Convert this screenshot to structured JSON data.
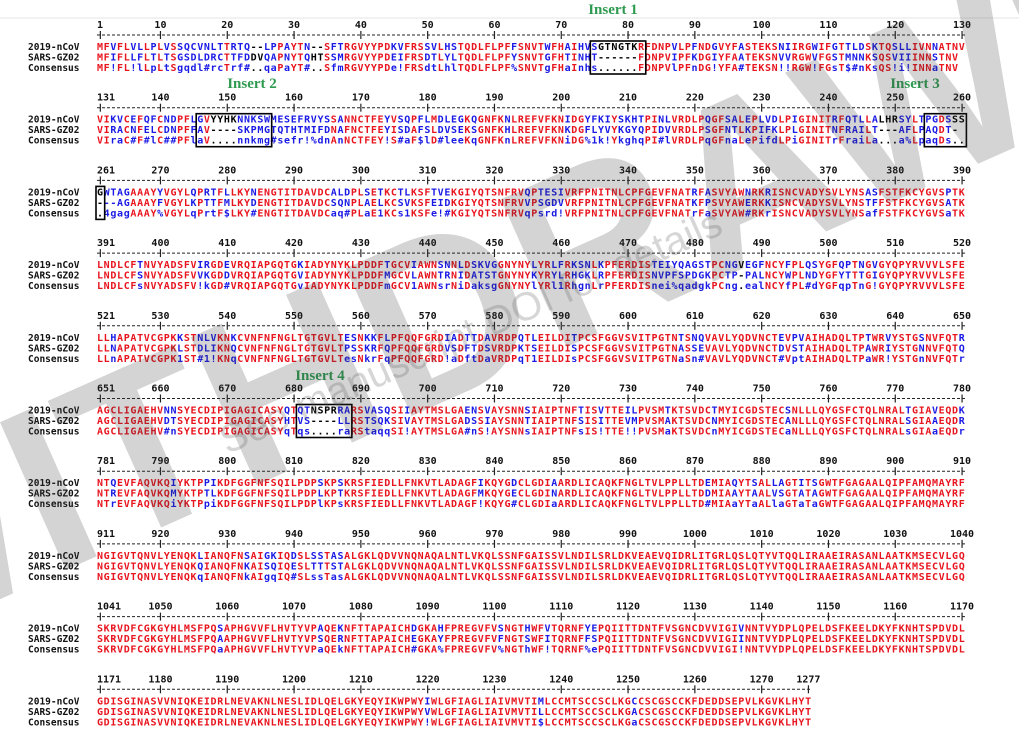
{
  "watermark": "WITHDRAWN",
  "watermark_note": "See manuscript DOI for details",
  "inserts": [
    "Insert 1",
    "Insert 2",
    "Insert 3",
    "Insert 4"
  ],
  "row_labels": [
    "2019-nCoV",
    "SARS-GZ02",
    "Consensus"
  ],
  "blocks": [
    {
      "ticks": [
        1,
        10,
        20,
        30,
        40,
        50,
        60,
        70,
        80,
        90,
        100,
        110,
        120,
        130
      ],
      "rows": [
        "MFVFLVLLPLVSSQCVNLTTRTQ--LPPAYTN--SFTRGVYYPDKVFRSSVLHSTQDLFLPFFSNVTWFHAIHVSGTNGTKRFDNPVLPFNDGVYFASTEKSNIIRGWIFGTTLDSKTQSLLIVNNATNV",
        "MFIFLLFLTLTSGSDLDRCTTFDDVQAPNYTQHTSSMRGVYYPDEIFRSDTLYLTQDLFLPFYSNVTGFHTINHT------FDNPVIPFKDGIYFAATEKSNVVRGWVFGSTMNNKSQSVIIINNSTNV",
        "MF!FL!lLpLtSgqdl#rcTrf#..qaPaYT#..SfmRGVYYPDe!FRSdtLhlTQDLFLPF%SNVTgFHaInhs......FDNPVlPFnDG!YFA#TEKSN!!RGW!FGsT$#nKsQS!i!INNaTNV"
      ]
    },
    {
      "ticks": [
        131,
        140,
        150,
        160,
        170,
        180,
        190,
        200,
        210,
        220,
        230,
        240,
        250,
        260
      ],
      "rows": [
        "VIKVCEFQFCNDPFLGVYYHKNNKSWMESEFRVYSSANNCTFEYVSQPFLMDLEGKQGNFKNLREFVFKNIDGYFKIYSKHTPINLVRDLPQGFSALEPLVDLPIGINITRFQTLLALHRSYLTPGDSSS",
        "VIRACNFELCDNPFFAV----SKPMGTQTHTMIFDNAFNCTFEYISDAFSLDVSEKSGNFKHLREFVFKNKDGFLYVYKGYQPIDVVRDLPSGFNTLKPIFKLPLGINITNFRAILT---AFLPAQDT-",
        "VIraC#F#lC##PFlaV....nnkmg#sefr!%dnAnNCTFEY!S#aF$lD#leeKqGNFKnLREFVFKNiDG%1k!YkghqPI#lVRDLPqGFnaLePifdLPiGINITrFraiLa...a%LpaqDs.."
      ]
    },
    {
      "ticks": [
        261,
        270,
        280,
        290,
        300,
        310,
        320,
        330,
        340,
        350,
        360,
        370,
        380,
        390
      ],
      "rows": [
        "GWTAGAAAYYVGYLQPRTFLLKYNENGTITDAVDCALDPLSETKCTLKSFTVEKGIYQTSNFRVQPTESIVRFPNITNLCPFGEVFNATRFASVYAWNRKRISNCVADYSVLYNSASFSTFKCYGVSPTK",
        "---AGAAAYFVGYLKPTTFMLKYDENGTITDAVDCSQNPLAELKCSVKSFEIDKGIYQTSNFRVVPSGDVVRFPNITNLCPFGEVFNATKFPSVYAWERKKISNCVADYSVLYNSTFFSTFKCYGVSATK",
        ".4gagAAAY%VGYLqPrtF$LKY#ENGTITDAVDCaq#PLaE1KCs1KSFe!#KGIYQTSNFRVqPsrd!VRFPNITNLCPFGEVFNATrFaSVYAW#RKrISNCVADYSVLYNSafFSTFKCYGVSaTK"
      ]
    },
    {
      "ticks": [
        391,
        400,
        410,
        420,
        430,
        440,
        450,
        460,
        470,
        480,
        490,
        500,
        510,
        520
      ],
      "rows": [
        "LNDLCFTNVYADSFVIRGDEVRQIAPGQTGKIADYNYKLPDDFTGCVIAWNSNNLDSKVGGNYNYLYRLFRKSNLKPFERDISTEIYQAGSTPCNGVEGFNCYFPLQSYGFQPTNGVGYQPYRVVVLSFE",
        "LNDLCFSNVYADSFVVKGDDVRQIAPGQTGVIADYNYKLPDDFMGCVLAWNTRNIDATSTGNYNYKYRYLRHGKLRPFERDISNVPFSPDGKPCTP-PALNCYWPLNDYGFYTTTGIGYQPYRVVVLSFE",
        "LNDLCFsNVYADSFV!kGD#VRQIAPGQTGvIADYNYKLPDDFmGCV1AWNsrNiDaksgGNYNYlYRl1RhgnLrPFERDISnei%qadgkPCng.ealNCYfPL#dYGFqpTnG!GYQPYRVVVLSFE"
      ]
    },
    {
      "ticks": [
        521,
        530,
        540,
        550,
        560,
        570,
        580,
        590,
        600,
        610,
        620,
        630,
        640,
        650
      ],
      "rows": [
        "LLHAPATVCGPKKSTNLVKNKCVNFNFNGLTGTGVLTESNKKFLPFQQFGRDIADTTDAVRDPQTLEILDITPCSFGGVSVITPGTNTSNQVAVLYQDVNCTEVPVAIHADQLTPTWRVYSTGSNVFQTR",
        "LLNAPATVCGPKLSTDLIKNQCVNFNFNGLTGTGVLTPSSKRFQPFQQFGRDVSDFTDSVRDPKTSEILDISPCSFGGVSVITPGTNASSEVAVLYQDVNCTDVSTAIHADQLTPAWRIYSTGNNVFQTQ",
        "LLnAPATVCGPK1ST#1!KNqCVNFNFNGLTGTGVLTesNkrFqPFQQFGRD!aDftDaVRDPqT1EILDIsPCSFGGVSVITPGTNaSn#VAVLYQDVNCT#VptAIHADQLTPaWR!YSTGnNVFQTr"
      ]
    },
    {
      "ticks": [
        651,
        660,
        670,
        680,
        690,
        700,
        710,
        720,
        730,
        740,
        750,
        760,
        770,
        780
      ],
      "rows": [
        "AGCLIGAEHVNNSYECDIPIGAGICASYQTQTNSPRRARSVASQSIIAYTMSLGAENSVAYSNNSIAIPTNFTISVTTEILPVSMTKTSVDCTMYICGDSTECSNLLLQYGSFCTQLNRALTGIAVEQDK",
        "AGCLIGAEHVDTSYECDIPIGAGICASYHTVS----LLRSTSQKSIVAYTMSLGADSSIAYSNNTIAIPTNFSISITTEVMPVSMAKTSVDCNMYICGDSTECANLLLQYGSFCTQLNRALSGIAAEQDR",
        "AGCLIGAEHV#nSYECDIPIGAGICASYqTqs....raRStaqqSI!AYTMSLGA#nS!AYSNNsIAIPTNFsIS!TTE!!PVSMaKTSVDCnMYICGDSTECaNLLLQYGSFCTQLNRALsGIAaEQDr"
      ]
    },
    {
      "ticks": [
        781,
        790,
        800,
        810,
        820,
        830,
        840,
        850,
        860,
        870,
        880,
        890,
        900,
        910
      ],
      "rows": [
        "NTQEVFAQVKQIYKTPPIKDFGGFNFSQILPDPSKPSKRSFIEDLLFNKVTLADAGFIKQYGDCLGDIAARDLICAQKFNGLTVLPPLLTDEMIAQYTSALLAGTITSGWTFGAGAALQIPFAMQMAYRF",
        "NTREVFAQVKQMYKTPTLKDFGGFNFSQILPDPLKPTKRSFIEDLLFNKVTLADAGFMKQYGECLGDINARDLICAQKFNGLTVLPPLLTDDMIAAYTAALVSGTATAGWTFGAGAALQIPFAMQMAYRF",
        "NTrEVFAQVKQiYKTPpiKDFGGFNFSQILPDPlKPsKRSFIEDLLFNKVTLADAGF!KQYG#CLGDIaARDLICAQKFNGLTVLPPLLTD#MIAaYTaALlaGTaTaGWTFGAGAALQIPFAMQMAYRF"
      ]
    },
    {
      "ticks": [
        911,
        920,
        930,
        940,
        950,
        960,
        970,
        980,
        990,
        1000,
        1010,
        1020,
        1030,
        1040
      ],
      "rows": [
        "NGIGVTQNVLYENQKLIANQFNSAIGKIQDSLSSTASALGKLQDVVNQNAQALNTLVKQLSSNFGAISSVLNDILSRLDKVEAEVQIDRLITGRLQSLQTYVTQQLIRAAEIRASANLAATKMSECVLGQ",
        "NGIGVTQNVLYENQKQIANQFNKAISQIQESLTTTSTALGKLQDVVNQNAQALNTLVKQLSSNFGAISSVLNDILSRLDKVEAEVQIDRLITGRLQSLQTYVTQQLIRAAEIRASANLAATKMSECVLGQ",
        "NGIGVTQNVLYENQKqIANQFNkAIgqIQ#SLssTasALGKLQDVVNQNAQALNTLVKQLSSNFGAISSVLNDILSRLDKVEAEVQIDRLITGRLQSLQTYVTQQLIRAAEIRASANLAATKMSECVLGQ"
      ]
    },
    {
      "ticks": [
        1041,
        1050,
        1060,
        1070,
        1080,
        1090,
        1100,
        1110,
        1120,
        1130,
        1140,
        1150,
        1160,
        1170
      ],
      "rows": [
        "SKRVDFCGKGYHLMSFPQSAPHGVVFLHVTYVPAQEKNFTTAPAICHDGKAHFPREGVFVSNGTHWFVTQRNFYEPQIITTDNTFVSGNCDVVIGIVNNTVYDPLQPELDSFKEELDKYFKNHTSPDVDL",
        "SKRVDFCGKGYHLMSFPQAAPHGVVFLHVTYVPSQERNFTTAPAICHEGKAYFPREGVFVFNGTSWFITQRNFFSPQIITTDNTFVSGNCDVVIGIINNTVYDPLQPELDSFKEELDKYFKNHTSPDVDL",
        "SKRVDFCGKGYHLMSFPQaAPHGVVFLHVTYVPaQEkNFTTAPAICH#GKA%FPREGVFV%NGThWF!TQRNF%ePQIITTDNTFVSGNCDVVIGI!NNTVYDPLQPELDSFKEELDKYFKNHTSPDVDL"
      ]
    },
    {
      "ticks": [
        1171,
        1180,
        1190,
        1200,
        1210,
        1220,
        1230,
        1240,
        1250,
        1260,
        1270,
        1277
      ],
      "rows": [
        "GDISGINASVVNIQKEIDRLNEVAKNLNESLIDLQELGKYEQYIKWPWYIWLGFIAGLIAIVMVTIMLCCMTSCCSCLKGCCSCGSCCKFDEDDSEPVLKGVKLHYT",
        "GDISGINASVVNIQKEIDRLNEVAKNLNESLIDLQELGKYEQYIKWPWYVWLGFIAGLIAIVMVTILLCCMTSCCSCLKGACSCGSCCKFDEDDSEPVLKGVKLHYT",
        "GDISGINASVVNIQKEIDRLNEVAKNLNESLIDLQELGKYEQYIKWPWY!WLGFIAGLIAIVMVTI$LCCMTSCCSCLKGaCSCGSCCKFDEDDSEPVLKGVKLHYT"
      ]
    }
  ]
}
